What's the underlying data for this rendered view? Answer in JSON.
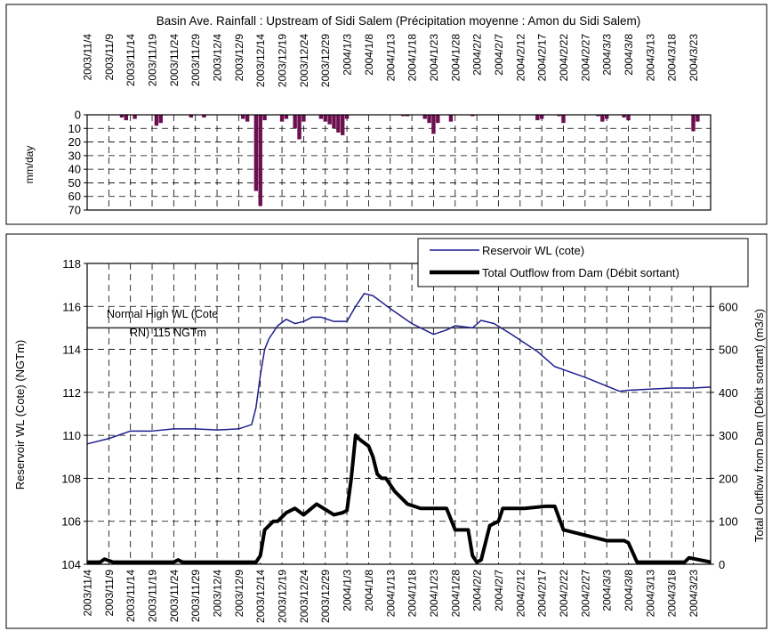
{
  "chart_data": [
    {
      "type": "bar",
      "title": "Basin Ave. Rainfall : Upstream of Sidi Salem (Précipitation moyenne : Amon du Sidi Salem)",
      "ylabel": "mm/day",
      "ylim": [
        0,
        70
      ],
      "y_reversed": true,
      "y_ticks": [
        0,
        10,
        20,
        30,
        40,
        50,
        60,
        70
      ],
      "x_start": "2003/11/4",
      "x_end": "2004/3/27",
      "x_tick_labels": [
        "2003/11/4",
        "2003/11/9",
        "2003/11/14",
        "2003/11/19",
        "2003/11/24",
        "2003/11/29",
        "2003/12/4",
        "2003/12/9",
        "2003/12/14",
        "2003/12/19",
        "2003/12/24",
        "2003/12/29",
        "2004/1/3",
        "2004/1/8",
        "2004/1/13",
        "2004/1/18",
        "2004/1/23",
        "2004/1/28",
        "2004/2/2",
        "2004/2/7",
        "2004/2/12",
        "2004/2/17",
        "2004/2/22",
        "2004/2/27",
        "2004/3/3",
        "2004/3/8",
        "2004/3/13",
        "2004/3/18",
        "2004/3/23"
      ],
      "grid": true,
      "bar_color": "#6b0f4f",
      "dates": [
        "2003/11/12",
        "2003/11/13",
        "2003/11/15",
        "2003/11/20",
        "2003/11/21",
        "2003/11/28",
        "2003/12/1",
        "2003/12/10",
        "2003/12/11",
        "2003/12/13",
        "2003/12/14",
        "2003/12/15",
        "2003/12/19",
        "2003/12/20",
        "2003/12/22",
        "2003/12/23",
        "2003/12/24",
        "2003/12/28",
        "2003/12/29",
        "2003/12/30",
        "2003/12/31",
        "2004/1/1",
        "2004/1/2",
        "2004/1/3",
        "2004/1/16",
        "2004/1/17",
        "2004/1/21",
        "2004/1/22",
        "2004/1/23",
        "2004/1/24",
        "2004/1/27",
        "2004/2/1",
        "2004/2/16",
        "2004/2/17",
        "2004/2/21",
        "2004/2/22",
        "2004/3/1",
        "2004/3/2",
        "2004/3/3",
        "2004/3/7",
        "2004/3/8",
        "2004/3/23",
        "2004/3/24"
      ],
      "values": [
        2,
        4,
        3,
        8,
        6,
        2,
        2,
        3,
        5,
        56,
        67,
        4,
        5,
        3,
        10,
        18,
        5,
        3,
        5,
        7,
        10,
        13,
        15,
        3,
        1,
        1,
        3,
        6,
        14,
        6,
        5,
        1,
        4,
        3,
        1,
        6,
        1,
        5,
        3,
        2,
        4,
        12,
        5
      ]
    },
    {
      "type": "line",
      "x_start": "2003/11/4",
      "x_end": "2004/3/27",
      "x_tick_labels": [
        "2003/11/4",
        "2003/11/9",
        "2003/11/14",
        "2003/11/19",
        "2003/11/24",
        "2003/11/29",
        "2003/12/4",
        "2003/12/9",
        "2003/12/14",
        "2003/12/19",
        "2003/12/24",
        "2003/12/29",
        "2004/1/3",
        "2004/1/8",
        "2004/1/13",
        "2004/1/18",
        "2004/1/23",
        "2004/1/28",
        "2004/2/2",
        "2004/2/7",
        "2004/2/12",
        "2004/2/17",
        "2004/2/22",
        "2004/2/27",
        "2004/3/3",
        "2004/3/8",
        "2004/3/13",
        "2004/3/18",
        "2004/3/23"
      ],
      "ylabel": "Reservoir WL (Cote) (NGTm)",
      "ylim": [
        104,
        118
      ],
      "y_ticks": [
        104,
        106,
        108,
        110,
        112,
        114,
        116,
        118
      ],
      "y2label": "Total Outflow from Dam (Débit sortant)  (m3/s)",
      "y2lim": [
        0,
        700
      ],
      "y2_ticks": [
        0,
        100,
        200,
        300,
        400,
        500,
        600
      ],
      "grid": true,
      "legend_position": "top-right",
      "reference_line": {
        "value": 115,
        "label_lines": [
          "Normal High WL (Cote",
          "RN) 115 NGTm"
        ]
      },
      "series": [
        {
          "name": "Reservoir WL (cote)",
          "axis": "left",
          "color": "#1f1f8f",
          "x": [
            "2003/11/4",
            "2003/11/9",
            "2003/11/14",
            "2003/11/19",
            "2003/11/24",
            "2003/11/29",
            "2003/12/4",
            "2003/12/9",
            "2003/12/12",
            "2003/12/13",
            "2003/12/14",
            "2003/12/15",
            "2003/12/16",
            "2003/12/18",
            "2003/12/20",
            "2003/12/22",
            "2003/12/24",
            "2003/12/26",
            "2003/12/28",
            "2003/12/31",
            "2004/1/3",
            "2004/1/5",
            "2004/1/7",
            "2004/1/9",
            "2004/1/13",
            "2004/1/18",
            "2004/1/23",
            "2004/1/26",
            "2004/1/28",
            "2004/2/1",
            "2004/2/3",
            "2004/2/6",
            "2004/2/10",
            "2004/2/16",
            "2004/2/20",
            "2004/2/27",
            "2004/3/6",
            "2004/3/8",
            "2004/3/13",
            "2004/3/18",
            "2004/3/23",
            "2004/3/27"
          ],
          "y": [
            109.6,
            109.85,
            110.2,
            110.2,
            110.3,
            110.3,
            110.25,
            110.3,
            110.5,
            111.3,
            112.8,
            114.0,
            114.5,
            115.1,
            115.4,
            115.2,
            115.3,
            115.5,
            115.5,
            115.3,
            115.3,
            116.0,
            116.6,
            116.5,
            115.9,
            115.2,
            114.7,
            114.9,
            115.1,
            115.0,
            115.35,
            115.2,
            114.7,
            113.9,
            113.2,
            112.7,
            112.05,
            112.1,
            112.15,
            112.2,
            112.2,
            112.25
          ]
        },
        {
          "name": "Total Outflow from Dam (Débit sortant)",
          "axis": "right",
          "color": "#000000",
          "x": [
            "2003/11/4",
            "2003/11/7",
            "2003/11/8",
            "2003/11/10",
            "2003/11/15",
            "2003/11/19",
            "2003/11/24",
            "2003/11/25",
            "2003/11/26",
            "2003/11/29",
            "2003/12/4",
            "2003/12/9",
            "2003/12/13",
            "2003/12/14",
            "2003/12/15",
            "2003/12/16",
            "2003/12/17",
            "2003/12/18",
            "2003/12/20",
            "2003/12/22",
            "2003/12/24",
            "2003/12/27",
            "2003/12/31",
            "2004/1/2",
            "2004/1/3",
            "2004/1/4",
            "2004/1/5",
            "2004/1/6",
            "2004/1/8",
            "2004/1/9",
            "2004/1/10",
            "2004/1/11",
            "2004/1/12",
            "2004/1/14",
            "2004/1/17",
            "2004/1/20",
            "2004/1/25",
            "2004/1/26",
            "2004/1/28",
            "2004/1/29",
            "2004/1/31",
            "2004/2/1",
            "2004/2/2",
            "2004/2/3",
            "2004/2/5",
            "2004/2/7",
            "2004/2/8",
            "2004/2/13",
            "2004/2/18",
            "2004/2/19",
            "2004/2/20",
            "2004/2/22",
            "2004/3/3",
            "2004/3/7",
            "2004/3/8",
            "2004/3/10",
            "2004/3/20",
            "2004/3/21",
            "2004/3/22",
            "2004/3/27"
          ],
          "y": [
            5,
            5,
            12,
            5,
            5,
            5,
            5,
            10,
            5,
            5,
            5,
            5,
            5,
            20,
            80,
            90,
            100,
            100,
            120,
            130,
            115,
            140,
            115,
            120,
            125,
            200,
            300,
            290,
            275,
            250,
            210,
            200,
            200,
            170,
            140,
            130,
            130,
            130,
            80,
            80,
            80,
            20,
            5,
            10,
            90,
            100,
            130,
            130,
            135,
            135,
            135,
            80,
            55,
            55,
            50,
            5,
            5,
            5,
            15,
            5
          ]
        }
      ]
    }
  ]
}
